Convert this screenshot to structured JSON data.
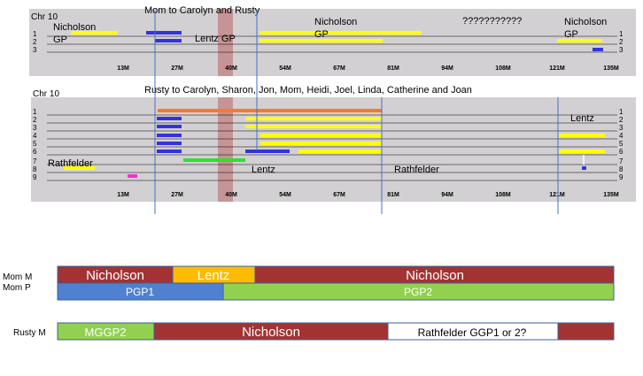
{
  "panel1": {
    "chr_label": "Chr 10",
    "title": "Mom to Carolyn and Rusty",
    "row_numbers": [
      "1",
      "2",
      "3"
    ],
    "axis_ticks": [
      "13M",
      "27M",
      "40M",
      "54M",
      "67M",
      "81M",
      "94M",
      "108M",
      "121M",
      "135M"
    ],
    "labels": {
      "nicholson_left_1": "Nicholson",
      "nicholson_left_2": "GP",
      "lentz": "Lentz GP",
      "nicholson_mid_1": "Nicholson",
      "nicholson_mid_2": "GP",
      "unknown": "???????????",
      "nicholson_right_1": "Nicholson",
      "nicholson_right_2": "GP"
    }
  },
  "panel2": {
    "chr_label": "Chr 10",
    "title": "Rusty to Carolyn, Sharon, Jon, Mom, Heidi, Joel, Linda,  Catherine and Joan",
    "row_numbers": [
      "1",
      "2",
      "3",
      "4",
      "5",
      "6",
      "7",
      "8",
      "9"
    ],
    "axis_ticks": [
      "13M",
      "27M",
      "40M",
      "54M",
      "67M",
      "81M",
      "94M",
      "108M",
      "121M",
      "135M"
    ],
    "labels": {
      "rathfelder_left": "Rathfelder",
      "lentz_mid": "Lentz",
      "rathfelder_mid": "Rathfelder",
      "lentz_right": "Lentz"
    }
  },
  "bottom": {
    "rows": [
      {
        "label": "Mom M",
        "segments": [
          "Nicholson",
          "Lentz",
          "Nicholson"
        ]
      },
      {
        "label": "Mom P",
        "segments": [
          "PGP1",
          "PGP2"
        ]
      },
      {
        "label": "Rusty M",
        "segments": [
          "MGGP2",
          "Nicholson",
          "Rathfelder  GGP1 or 2?",
          ""
        ]
      }
    ]
  },
  "colors": {
    "panel_bg": "#d3d0d3",
    "yellow": "#ffff00",
    "blue": "#3333dd",
    "orange": "#ff7722",
    "green": "#33dd33",
    "magenta": "#ee33cc",
    "highlight": "#c08080",
    "maroon": "#a33333",
    "gold": "#ffbb00",
    "steel_blue": "#4f81d0",
    "lime": "#92d050"
  }
}
